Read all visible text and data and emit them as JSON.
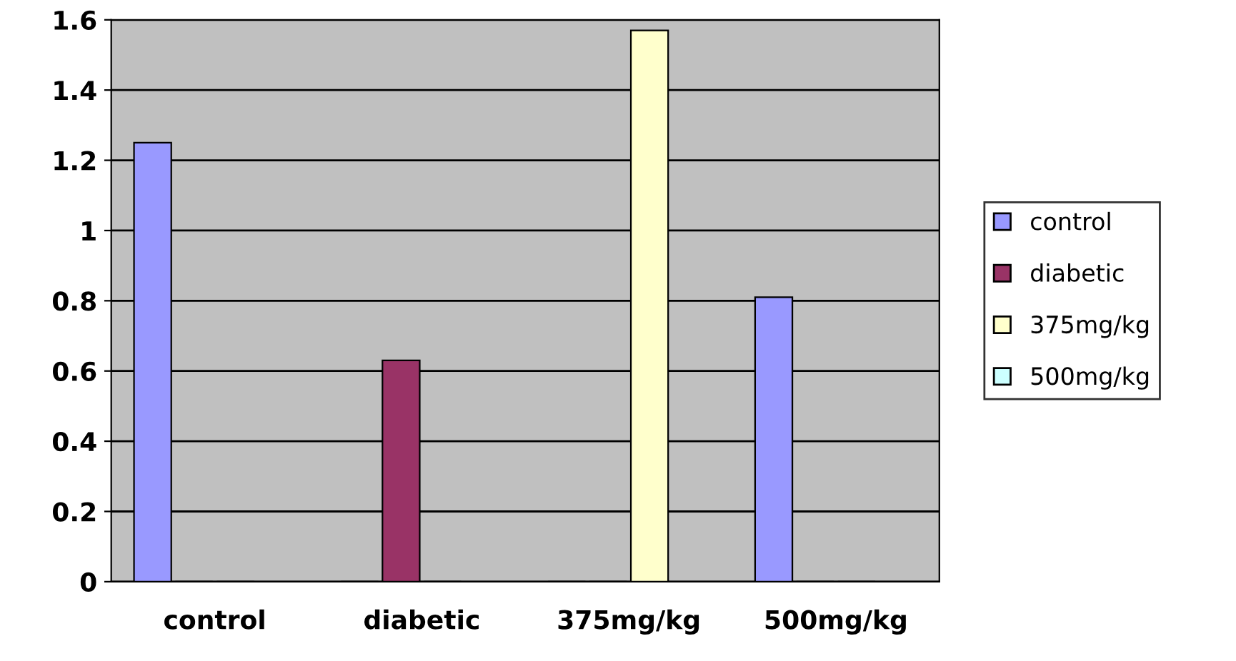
{
  "chart_data": {
    "type": "bar",
    "categories": [
      "control",
      "diabetic",
      "375mg/kg",
      "500mg/kg"
    ],
    "series": [
      {
        "name": "control",
        "color": "#9999ff",
        "values": [
          1.25,
          0,
          0,
          0.81
        ]
      },
      {
        "name": "diabetic",
        "color": "#993366",
        "values": [
          0,
          0.63,
          0,
          0
        ]
      },
      {
        "name": "375mg/kg",
        "color": "#ffffcc",
        "values": [
          0,
          0,
          1.57,
          0
        ]
      },
      {
        "name": "500mg/kg",
        "color": "#ccffff",
        "values": [
          null,
          null,
          null,
          null
        ]
      }
    ],
    "ylim": [
      0,
      1.6
    ],
    "yticks": [
      0,
      0.2,
      0.4,
      0.6,
      0.8,
      1,
      1.2,
      1.4,
      1.6
    ],
    "grid": "y",
    "legend": "right"
  }
}
